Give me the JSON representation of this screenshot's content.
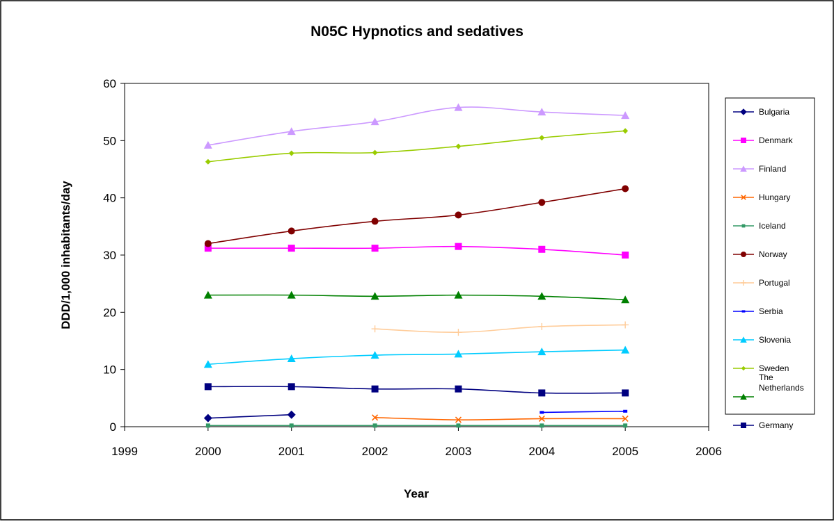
{
  "chart_data": {
    "type": "line",
    "title": "N05C Hypnotics and sedatives",
    "xlabel": "Year",
    "ylabel": "DDD/1,000 inhabitants/day",
    "xlim": [
      1999,
      2006
    ],
    "ylim": [
      0,
      60
    ],
    "xticks": [
      1999,
      2000,
      2001,
      2002,
      2003,
      2004,
      2005,
      2006
    ],
    "yticks": [
      0,
      10,
      20,
      30,
      40,
      50,
      60
    ],
    "grid": false,
    "legend_position": "right",
    "series": [
      {
        "name": "Bulgaria",
        "color": "#000080",
        "marker": "diamond",
        "x": [
          2000,
          2001
        ],
        "y": [
          1.5,
          2.1
        ]
      },
      {
        "name": "Denmark",
        "color": "#FF00FF",
        "marker": "square",
        "x": [
          2000,
          2001,
          2002,
          2003,
          2004,
          2005
        ],
        "y": [
          31.2,
          31.2,
          31.2,
          31.5,
          31.0,
          30.0
        ]
      },
      {
        "name": "Finland",
        "color": "#CC99FF",
        "marker": "triangle",
        "x": [
          2000,
          2001,
          2002,
          2003,
          2004,
          2005
        ],
        "y": [
          49.2,
          51.6,
          53.3,
          55.8,
          55.0,
          54.4
        ]
      },
      {
        "name": "Hungary",
        "color": "#FF6600",
        "marker": "x",
        "x": [
          2002,
          2003,
          2004,
          2005
        ],
        "y": [
          1.6,
          1.2,
          1.4,
          1.4
        ]
      },
      {
        "name": "Iceland",
        "color": "#339966",
        "marker": "square-small",
        "x": [
          2000,
          2001,
          2002,
          2003,
          2004,
          2005
        ],
        "y": [
          0.2,
          0.2,
          0.2,
          0.2,
          0.2,
          0.2
        ]
      },
      {
        "name": "Norway",
        "color": "#800000",
        "marker": "circle",
        "x": [
          2000,
          2001,
          2002,
          2003,
          2004,
          2005
        ],
        "y": [
          32.0,
          34.2,
          35.9,
          37.0,
          39.2,
          41.6
        ]
      },
      {
        "name": "Portugal",
        "color": "#FFCC99",
        "marker": "plus",
        "x": [
          2002,
          2003,
          2004,
          2005
        ],
        "y": [
          17.1,
          16.5,
          17.5,
          17.8
        ]
      },
      {
        "name": "Serbia",
        "color": "#0000FF",
        "marker": "dash",
        "x": [
          2004,
          2005
        ],
        "y": [
          2.5,
          2.7
        ]
      },
      {
        "name": "Slovenia",
        "color": "#00CCFF",
        "marker": "triangle",
        "x": [
          2000,
          2001,
          2002,
          2003,
          2004,
          2005
        ],
        "y": [
          10.9,
          11.9,
          12.5,
          12.7,
          13.1,
          13.4
        ]
      },
      {
        "name": "Sweden",
        "color": "#99CC00",
        "marker": "diamond-small",
        "x": [
          2000,
          2001,
          2002,
          2003,
          2004,
          2005
        ],
        "y": [
          46.3,
          47.8,
          47.9,
          49.0,
          50.5,
          51.7
        ]
      },
      {
        "name": "The Netherlands",
        "color": "#008000",
        "marker": "triangle",
        "x": [
          2000,
          2001,
          2002,
          2003,
          2004,
          2005
        ],
        "y": [
          23.0,
          23.0,
          22.8,
          23.0,
          22.8,
          22.2
        ]
      },
      {
        "name": "Germany",
        "color": "#000080",
        "marker": "square",
        "x": [
          2000,
          2001,
          2002,
          2003,
          2004,
          2005
        ],
        "y": [
          7.0,
          7.0,
          6.6,
          6.6,
          5.9,
          5.9
        ]
      }
    ]
  }
}
